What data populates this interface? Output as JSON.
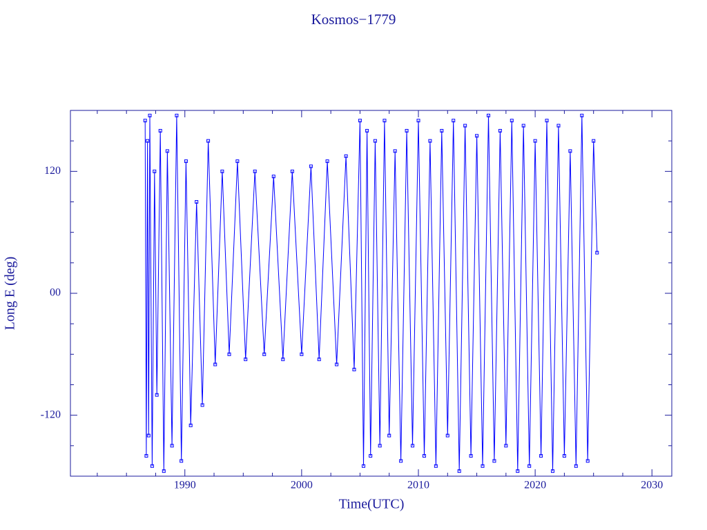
{
  "chart_data": {
    "type": "line",
    "title": "Kosmos−1779",
    "x_label": "Time(UTC)",
    "y_label": "Long E (deg)",
    "xlim": [
      1980.2,
      2031.7
    ],
    "xticks": [
      1990,
      2000,
      2010,
      2020,
      2030
    ],
    "xminorticks": [
      1982.5,
      1985,
      1987.5,
      1992.5,
      1995,
      1997.5,
      2002.5,
      2005,
      2007.5,
      2012.5,
      2015,
      2017.5,
      2022.5,
      2025,
      2027.5
    ],
    "ylim": [
      -180,
      180
    ],
    "yticks": [
      -120,
      {
        "value": 0,
        "label": "00"
      },
      120
    ],
    "yminorticks": [
      -150,
      -90,
      -60,
      -30,
      30,
      60,
      90,
      150
    ],
    "x": [
      1986.6,
      1986.7,
      1986.8,
      1986.9,
      1987.0,
      1987.2,
      1987.4,
      1987.6,
      1987.9,
      1988.2,
      1988.5,
      1988.9,
      1989.3,
      1989.7,
      1990.1,
      1990.5,
      1991.0,
      1991.5,
      1992.0,
      1992.6,
      1993.2,
      1993.8,
      1994.5,
      1995.2,
      1996.0,
      1996.8,
      1997.6,
      1998.4,
      1999.2,
      2000.0,
      2000.8,
      2001.5,
      2002.2,
      2003.0,
      2003.8,
      2004.5,
      2005.0,
      2005.3,
      2005.6,
      2005.9,
      2006.3,
      2006.7,
      2007.1,
      2007.5,
      2008.0,
      2008.5,
      2009.0,
      2009.5,
      2010.0,
      2010.5,
      2011.0,
      2011.5,
      2012.0,
      2012.5,
      2013.0,
      2013.5,
      2014.0,
      2014.5,
      2015.0,
      2015.5,
      2016.0,
      2016.5,
      2017.0,
      2017.5,
      2018.0,
      2018.5,
      2019.0,
      2019.5,
      2020.0,
      2020.5,
      2021.0,
      2021.5,
      2022.0,
      2022.5,
      2023.0,
      2023.5,
      2024.0,
      2024.5,
      2025.0,
      2025.3
    ],
    "series": [
      {
        "color": "#0000ff",
        "values": [
          170,
          -160,
          150,
          -140,
          175,
          -170,
          120,
          -100,
          160,
          -175,
          140,
          -150,
          175,
          -165,
          130,
          -130,
          90,
          -110,
          150,
          -70,
          120,
          -60,
          130,
          -65,
          120,
          -60,
          115,
          -65,
          120,
          -60,
          125,
          -65,
          130,
          -70,
          135,
          -75,
          170,
          -170,
          160,
          -160,
          150,
          -150,
          170,
          -140,
          140,
          -165,
          160,
          -150,
          170,
          -160,
          150,
          -170,
          160,
          -140,
          170,
          -175,
          165,
          -160,
          155,
          -170,
          175,
          -165,
          160,
          -150,
          170,
          -175,
          165,
          -170,
          150,
          -160,
          170,
          -175,
          165,
          -160,
          140,
          -170,
          175,
          -165,
          150,
          40
        ]
      }
    ]
  }
}
